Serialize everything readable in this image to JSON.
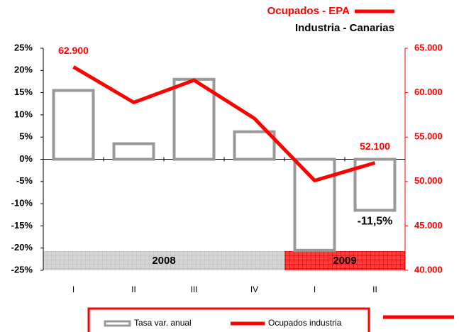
{
  "chart_data": {
    "type": "bar_line",
    "title": "Ocupados - EPA",
    "subtitle": "Industria - Canarias",
    "categories": [
      "I",
      "II",
      "III",
      "IV",
      "I",
      "II"
    ],
    "groups": [
      {
        "label": "2008",
        "span": 4,
        "color": "#d4d4d4"
      },
      {
        "label": "2009",
        "span": 2,
        "color": "#ff3b3b"
      }
    ],
    "series": [
      {
        "name": "Tasa var. anual",
        "type": "bar",
        "color": "#999999",
        "values": [
          15.5,
          3.5,
          18,
          6.2,
          -20.5,
          -11.5
        ],
        "value_labels": [
          null,
          null,
          null,
          null,
          null,
          "-11,5%"
        ]
      },
      {
        "name": "Ocupados industria",
        "type": "line",
        "axis": "y2",
        "color": "#ff0000",
        "values": [
          62900,
          58900,
          61400,
          57100,
          50100,
          52100
        ],
        "value_labels": [
          "62.900",
          null,
          null,
          null,
          null,
          "52.100"
        ]
      }
    ],
    "ylim": [
      -25,
      25
    ],
    "yticks": [
      {
        "value": 25,
        "label": "25%"
      },
      {
        "value": 20,
        "label": "20%"
      },
      {
        "value": 15,
        "label": "15%"
      },
      {
        "value": 10,
        "label": "10%"
      },
      {
        "value": 5,
        "label": "5%"
      },
      {
        "value": 0,
        "label": "0%"
      },
      {
        "value": -5,
        "label": "-5%"
      },
      {
        "value": -10,
        "label": "-10%"
      },
      {
        "value": -15,
        "label": "-15%"
      },
      {
        "value": -20,
        "label": "-20%"
      },
      {
        "value": -25,
        "label": "-25%"
      }
    ],
    "y2lim": [
      40000,
      65000
    ],
    "y2ticks": [
      {
        "value": 65000,
        "label": "65.000"
      },
      {
        "value": 60000,
        "label": "60.000"
      },
      {
        "value": 55000,
        "label": "55.000"
      },
      {
        "value": 50000,
        "label": "50.000"
      },
      {
        "value": 45000,
        "label": "45.000"
      },
      {
        "value": 40000,
        "label": "40.000"
      }
    ]
  }
}
